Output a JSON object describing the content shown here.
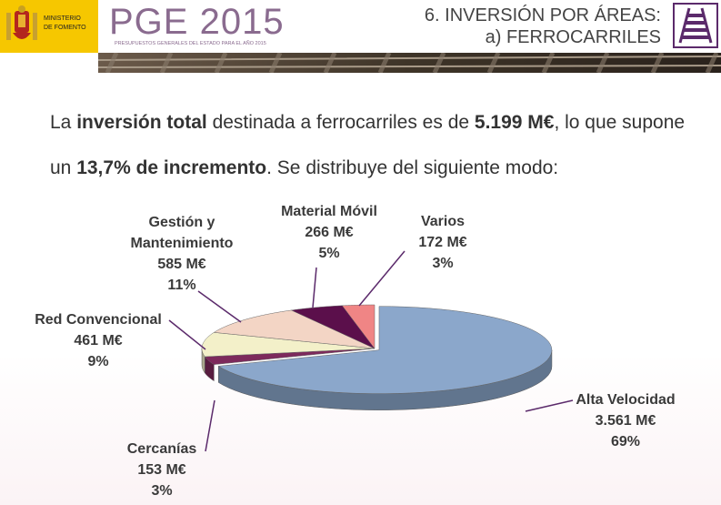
{
  "header": {
    "ministry": [
      "MINISTERIO",
      "DE FOMENTO"
    ],
    "logo": "PGE 2015",
    "logo_sub": "PRESUPUESTOS GENERALES DEL ESTADO PARA EL AÑO 2015",
    "section": "6. INVERSIÓN POR ÁREAS:",
    "subsection": "a) FERROCARRILES"
  },
  "intro": [
    {
      "text": "La ",
      "bold": false
    },
    {
      "text": "inversión total",
      "bold": true
    },
    {
      "text": " destinada a ferrocarriles es de ",
      "bold": false
    },
    {
      "text": "5.199 M€",
      "bold": true
    },
    {
      "text": ", lo que supone un ",
      "bold": false
    },
    {
      "text": "13,7% de incremento",
      "bold": true
    },
    {
      "text": ". Se distribuye del siguiente modo:",
      "bold": false
    }
  ],
  "chart_data": {
    "type": "pie3d",
    "categories": [
      "Alta Velocidad",
      "Cercanías",
      "Red Convencional",
      "Gestión y Mantenimiento",
      "Material Móvil",
      "Varios"
    ],
    "values": [
      69,
      3,
      9,
      11,
      5,
      3
    ],
    "value_labels": [
      "69%",
      "3%",
      "9%",
      "11%",
      "5%",
      "3%"
    ],
    "amounts": [
      3561,
      153,
      461,
      585,
      266,
      172
    ],
    "amount_labels": [
      "3.561 M€",
      "153 M€",
      "461 M€",
      "585 M€",
      "266 M€",
      "172 M€"
    ],
    "colors": [
      "#8ba7cb",
      "#7d2a5c",
      "#f3f0c9",
      "#f3d5c5",
      "#5b0f4b",
      "#f08585"
    ]
  }
}
